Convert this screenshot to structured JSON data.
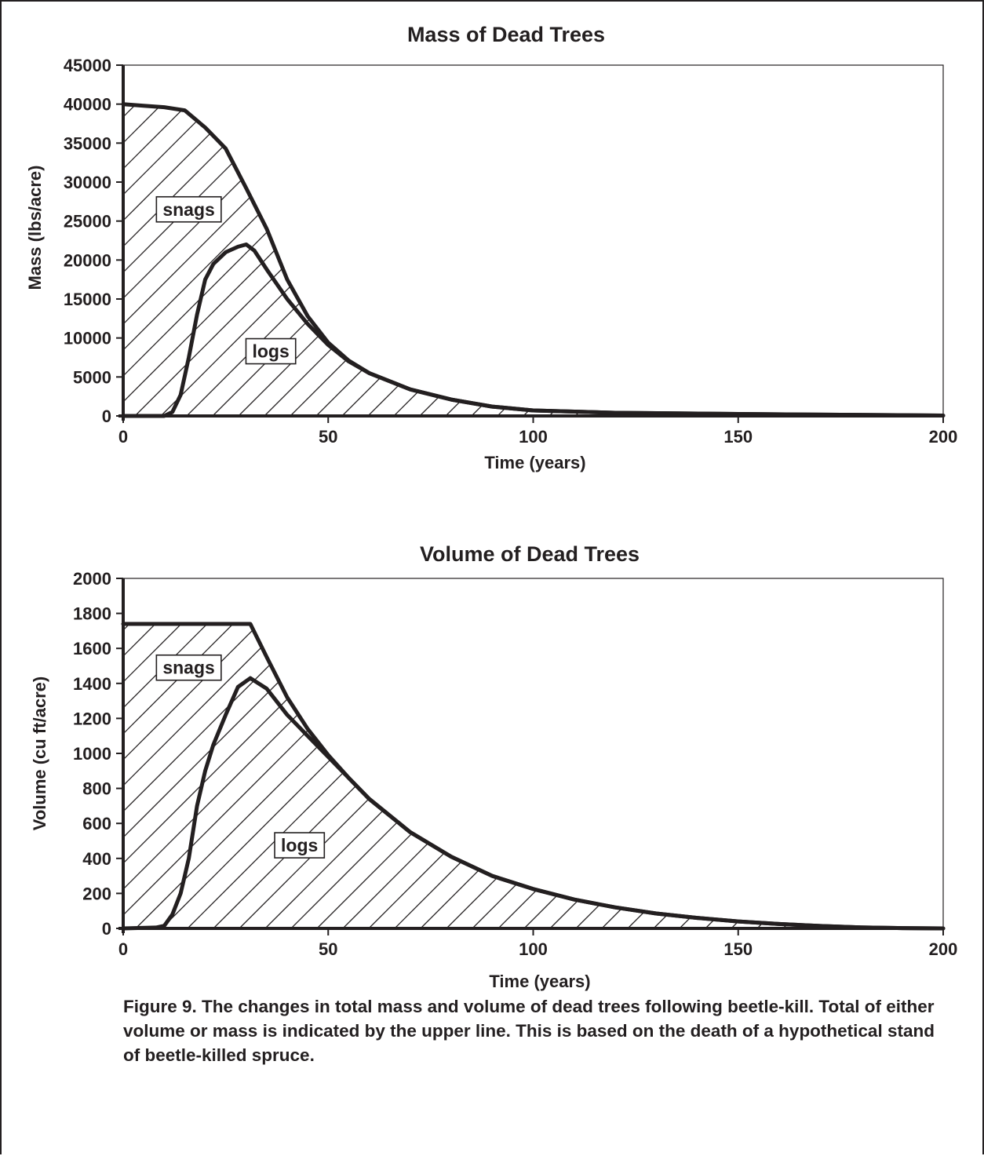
{
  "chart_data": [
    {
      "type": "area",
      "title": "Mass of Dead Trees",
      "xlabel": "Time (years)",
      "ylabel": "Mass (lbs/acre)",
      "xlim": [
        0,
        200
      ],
      "ylim": [
        0,
        45000
      ],
      "x_ticks": [
        0,
        50,
        100,
        150,
        200
      ],
      "y_ticks": [
        0,
        5000,
        10000,
        15000,
        20000,
        25000,
        30000,
        35000,
        40000,
        45000
      ],
      "grid": false,
      "fill_pattern": "diagonal hatch",
      "series": [
        {
          "points": [
            [
              0,
              40000
            ],
            [
              5,
              39800
            ],
            [
              10,
              39600
            ],
            [
              15,
              39200
            ],
            [
              20,
              37000
            ],
            [
              25,
              34300
            ],
            [
              30,
              29200
            ],
            [
              35,
              24000
            ],
            [
              40,
              17500
            ],
            [
              45,
              12800
            ],
            [
              50,
              9400
            ],
            [
              55,
              7100
            ],
            [
              60,
              5500
            ],
            [
              70,
              3400
            ],
            [
              80,
              2100
            ],
            [
              90,
              1200
            ],
            [
              100,
              700
            ],
            [
              120,
              400
            ],
            [
              150,
              250
            ],
            [
              200,
              50
            ]
          ]
        },
        {
          "points": [
            [
              0,
              0
            ],
            [
              10,
              0
            ],
            [
              12,
              500
            ],
            [
              14,
              2700
            ],
            [
              16,
              7500
            ],
            [
              18,
              13000
            ],
            [
              20,
              17500
            ],
            [
              22,
              19500
            ],
            [
              25,
              21000
            ],
            [
              28,
              21700
            ],
            [
              30,
              22000
            ],
            [
              32,
              21200
            ],
            [
              35,
              18800
            ],
            [
              40,
              15000
            ],
            [
              45,
              11800
            ],
            [
              50,
              9100
            ],
            [
              55,
              7000
            ],
            [
              60,
              5500
            ],
            [
              70,
              3400
            ],
            [
              80,
              2100
            ],
            [
              90,
              1200
            ],
            [
              100,
              700
            ],
            [
              120,
              400
            ],
            [
              150,
              250
            ],
            [
              200,
              50
            ]
          ]
        }
      ],
      "annotations": [
        {
          "text": "snags",
          "x": 16,
          "y": 26500
        },
        {
          "text": "logs",
          "x": 36,
          "y": 8300
        }
      ]
    },
    {
      "type": "area",
      "title": "Volume of Dead Trees",
      "xlabel": "Time (years)",
      "ylabel": "Volume (cu ft/acre)",
      "xlim": [
        0,
        200
      ],
      "ylim": [
        0,
        2000
      ],
      "x_ticks": [
        0,
        50,
        100,
        150,
        200
      ],
      "y_ticks": [
        0,
        200,
        400,
        600,
        800,
        1000,
        1200,
        1400,
        1600,
        1800,
        2000
      ],
      "grid": false,
      "fill_pattern": "diagonal hatch",
      "series": [
        {
          "points": [
            [
              0,
              1740
            ],
            [
              31,
              1740
            ],
            [
              35,
              1550
            ],
            [
              40,
              1320
            ],
            [
              45,
              1140
            ],
            [
              50,
              990
            ],
            [
              55,
              860
            ],
            [
              60,
              740
            ],
            [
              70,
              550
            ],
            [
              80,
              410
            ],
            [
              90,
              300
            ],
            [
              100,
              225
            ],
            [
              110,
              165
            ],
            [
              120,
              120
            ],
            [
              130,
              85
            ],
            [
              140,
              60
            ],
            [
              150,
              40
            ],
            [
              160,
              25
            ],
            [
              170,
              14
            ],
            [
              180,
              6
            ],
            [
              190,
              2
            ],
            [
              200,
              0
            ]
          ]
        },
        {
          "points": [
            [
              0,
              0
            ],
            [
              8,
              5
            ],
            [
              10,
              15
            ],
            [
              12,
              80
            ],
            [
              14,
              200
            ],
            [
              16,
              400
            ],
            [
              18,
              700
            ],
            [
              20,
              900
            ],
            [
              22,
              1050
            ],
            [
              25,
              1220
            ],
            [
              28,
              1380
            ],
            [
              31,
              1430
            ],
            [
              35,
              1370
            ],
            [
              40,
              1220
            ],
            [
              45,
              1100
            ],
            [
              50,
              980
            ],
            [
              55,
              860
            ],
            [
              60,
              740
            ],
            [
              70,
              550
            ],
            [
              80,
              410
            ],
            [
              90,
              300
            ],
            [
              100,
              225
            ],
            [
              110,
              165
            ],
            [
              120,
              120
            ],
            [
              130,
              85
            ],
            [
              140,
              60
            ],
            [
              150,
              40
            ],
            [
              160,
              25
            ],
            [
              170,
              14
            ],
            [
              180,
              6
            ],
            [
              190,
              2
            ],
            [
              200,
              0
            ]
          ]
        }
      ],
      "annotations": [
        {
          "text": "snags",
          "x": 16,
          "y": 1490
        },
        {
          "text": "logs",
          "x": 43,
          "y": 475
        }
      ]
    }
  ],
  "caption": "Figure 9. The changes in total mass and volume of dead trees following beetle-kill. Total of either volume or mass is indicated by the upper line. This is based on the death of a hypothetical stand of beetle-killed spruce."
}
